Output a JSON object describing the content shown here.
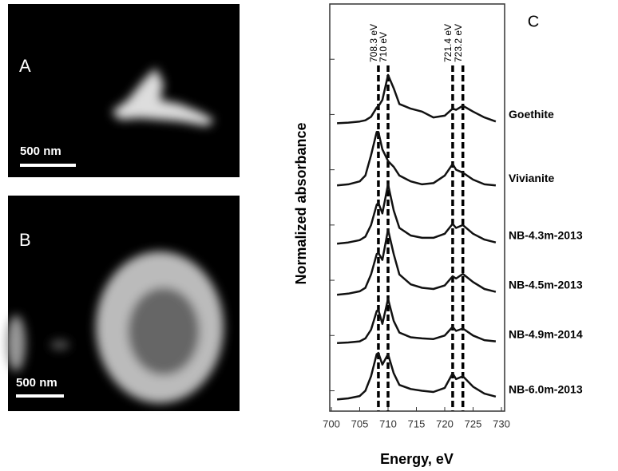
{
  "panels": [
    {
      "label": "A",
      "scale": "500 nm"
    },
    {
      "label": "B",
      "scale": "500 nm"
    }
  ],
  "chart_data": {
    "type": "line",
    "panel_label": "C",
    "x_label": "Energy, eV",
    "y_label": "Normalized absorbance",
    "xlim": [
      700,
      730
    ],
    "xticks": [
      700,
      705,
      710,
      715,
      720,
      725,
      730
    ],
    "ylim": [
      0,
      7
    ],
    "yticks": [
      0.35,
      1.3,
      2.25,
      3.2,
      4.15,
      5.1,
      6.05
    ],
    "color": "#111111",
    "reference_lines": [
      {
        "value": 708.3,
        "label": "708.3 eV"
      },
      {
        "value": 710,
        "label": "710 eV"
      },
      {
        "value": 721.4,
        "label": "721.4 eV"
      },
      {
        "value": 723.2,
        "label": "723.2 eV"
      }
    ],
    "x": [
      701,
      703,
      705,
      706,
      707,
      708,
      708.3,
      709,
      710,
      711,
      712,
      714,
      716,
      718,
      720,
      721.4,
      722,
      723.2,
      725,
      727,
      729
    ],
    "series": [
      {
        "name": "Goethite",
        "values": [
          4.95,
          4.96,
          4.98,
          5.0,
          5.06,
          5.22,
          5.24,
          5.35,
          5.78,
          5.55,
          5.28,
          5.2,
          5.15,
          5.05,
          5.08,
          5.2,
          5.18,
          5.25,
          5.15,
          5.05,
          4.98
        ]
      },
      {
        "name": "Vivianite",
        "values": [
          3.88,
          3.9,
          3.95,
          4.05,
          4.4,
          4.8,
          4.8,
          4.5,
          4.3,
          4.2,
          4.05,
          3.95,
          3.9,
          3.92,
          4.05,
          4.25,
          4.15,
          4.1,
          3.98,
          3.9,
          3.88
        ]
      },
      {
        "name": "NB-4.3m-2013",
        "values": [
          2.88,
          2.9,
          2.94,
          3.0,
          3.2,
          3.55,
          3.58,
          3.4,
          3.9,
          3.45,
          3.15,
          3.02,
          2.98,
          2.98,
          3.05,
          3.22,
          3.15,
          3.2,
          3.05,
          2.95,
          2.9
        ]
      },
      {
        "name": "NB-4.5m-2013",
        "values": [
          2.0,
          2.02,
          2.06,
          2.12,
          2.35,
          2.7,
          2.72,
          2.6,
          3.12,
          2.7,
          2.35,
          2.18,
          2.12,
          2.1,
          2.16,
          2.32,
          2.28,
          2.36,
          2.22,
          2.1,
          2.05
        ]
      },
      {
        "name": "NB-4.9m-2014",
        "values": [
          1.17,
          1.18,
          1.2,
          1.25,
          1.4,
          1.72,
          1.74,
          1.5,
          1.93,
          1.55,
          1.35,
          1.27,
          1.25,
          1.24,
          1.3,
          1.45,
          1.38,
          1.42,
          1.3,
          1.22,
          1.2
        ]
      },
      {
        "name": "NB-6.0m-2013",
        "values": [
          0.2,
          0.22,
          0.26,
          0.35,
          0.6,
          0.98,
          1.0,
          0.8,
          0.98,
          0.65,
          0.45,
          0.38,
          0.35,
          0.33,
          0.4,
          0.65,
          0.55,
          0.6,
          0.42,
          0.3,
          0.25
        ]
      }
    ]
  }
}
